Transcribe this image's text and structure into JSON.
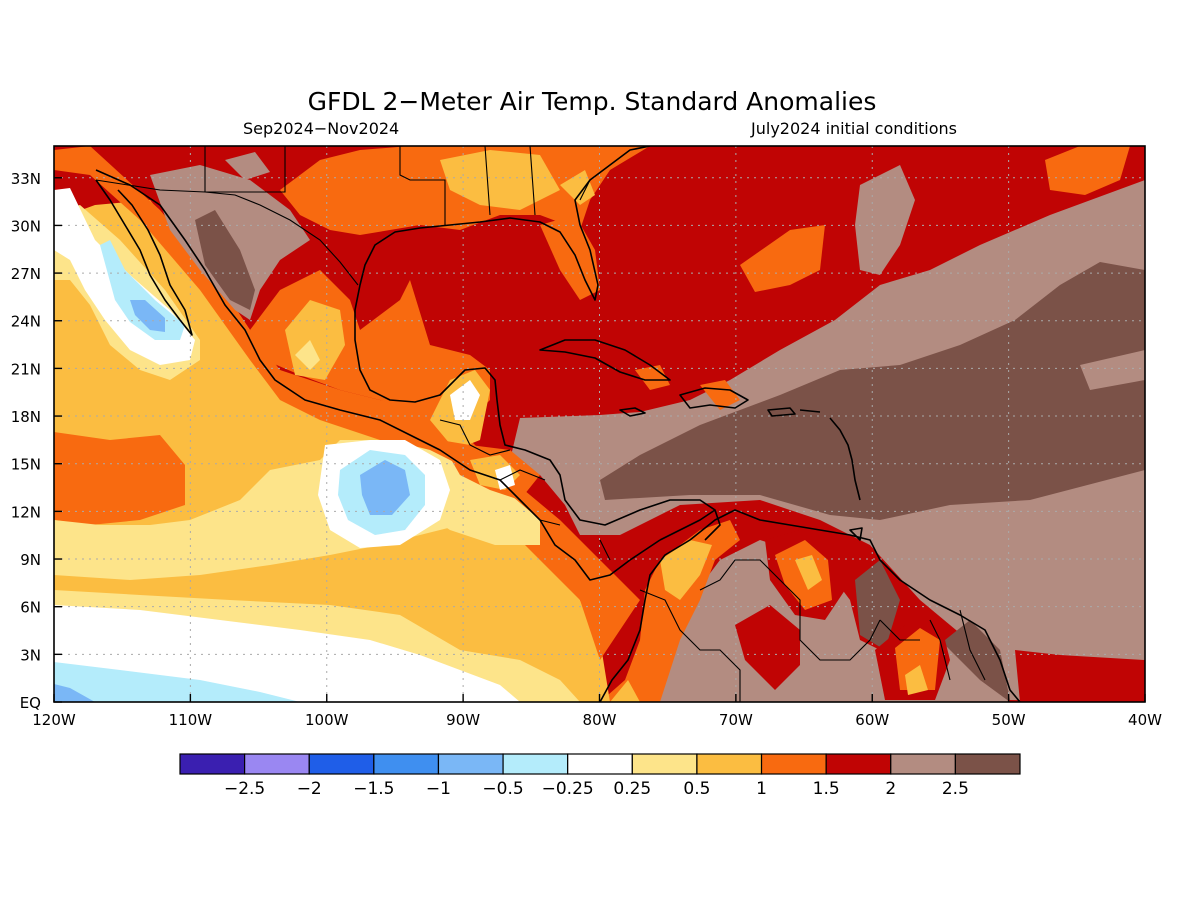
{
  "title": "GFDL 2−Meter Air Temp. Standard Anomalies",
  "subtitle_left": "Sep2024−Nov2024",
  "subtitle_right": "July2024 initial conditions",
  "colors": {
    "c0": "#3a1fb0",
    "c1": "#9a87f2",
    "c2": "#1f5ee8",
    "c3": "#3f8ff0",
    "c4": "#7ab7f6",
    "c5": "#b4ecfb",
    "c6": "#ffffff",
    "c7": "#fde48a",
    "c8": "#fbbd41",
    "c9": "#f86a10",
    "c10": "#c00404",
    "c11": "#b38c81",
    "c12": "#7b5248"
  },
  "chart_data": {
    "type": "map",
    "variable": "2-meter air temperature standard anomaly",
    "lon_range": [
      -120,
      -40
    ],
    "lat_range": [
      0,
      35
    ],
    "x_ticks": [
      "120W",
      "110W",
      "100W",
      "90W",
      "80W",
      "70W",
      "60W",
      "50W",
      "40W"
    ],
    "x_tick_values": [
      -120,
      -110,
      -100,
      -90,
      -80,
      -70,
      -60,
      -50,
      -40
    ],
    "y_ticks": [
      "EQ",
      "3N",
      "6N",
      "9N",
      "12N",
      "15N",
      "18N",
      "21N",
      "24N",
      "27N",
      "30N",
      "33N"
    ],
    "y_tick_values": [
      0,
      3,
      6,
      9,
      12,
      15,
      18,
      21,
      24,
      27,
      30,
      33
    ],
    "grid": true,
    "colorbar": {
      "labels": [
        "−2.5",
        "−2",
        "−1.5",
        "−1",
        "−0.5",
        "−0.25",
        "0.25",
        "0.5",
        "1",
        "1.5",
        "2",
        "2.5"
      ],
      "boundaries": [
        -2.5,
        -2,
        -1.5,
        -1,
        -0.5,
        -0.25,
        0.25,
        0.5,
        1,
        1.5,
        2,
        2.5
      ],
      "colors": [
        "#3a1fb0",
        "#9a87f2",
        "#1f5ee8",
        "#3f8ff0",
        "#7ab7f6",
        "#b4ecfb",
        "#ffffff",
        "#fde48a",
        "#fbbd41",
        "#f86a10",
        "#c00404",
        "#b38c81",
        "#7b5248"
      ]
    }
  }
}
